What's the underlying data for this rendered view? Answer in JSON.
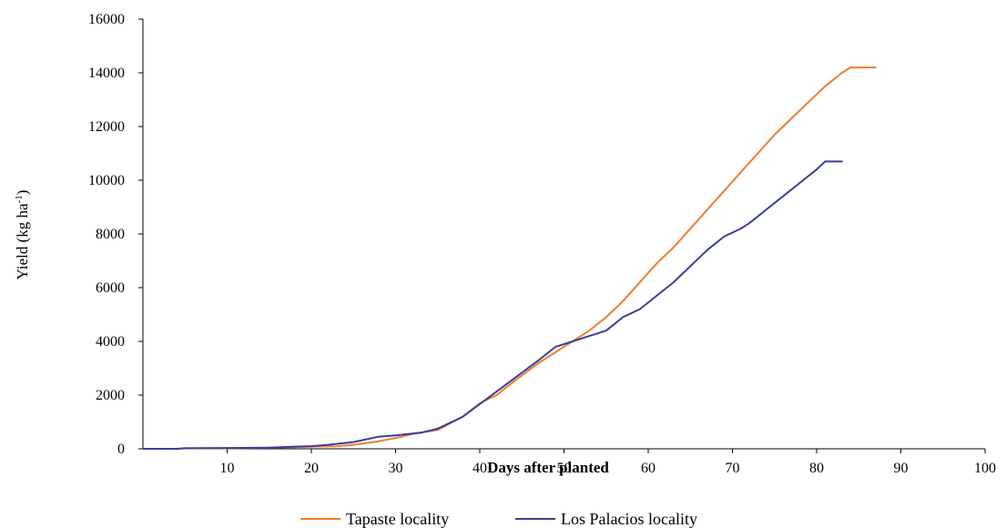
{
  "chart_data": {
    "type": "line",
    "title": "",
    "xlabel": "Days after planted",
    "ylabel": "Yield (kg ha",
    "ylabel_sup": "-1",
    "ylabel_close": ")",
    "xlim": [
      0,
      100
    ],
    "ylim": [
      0,
      16000
    ],
    "x_ticks": [
      10,
      20,
      30,
      40,
      50,
      60,
      70,
      80,
      90,
      100
    ],
    "y_ticks": [
      0,
      2000,
      4000,
      6000,
      8000,
      10000,
      12000,
      14000,
      16000
    ],
    "grid": false,
    "legend_position": "bottom",
    "series": [
      {
        "name": "Tapaste locality",
        "color": "#ED7D31",
        "points": [
          [
            0,
            0
          ],
          [
            4,
            0
          ],
          [
            5,
            20
          ],
          [
            10,
            20
          ],
          [
            15,
            40
          ],
          [
            18,
            60
          ],
          [
            20,
            80
          ],
          [
            23,
            90
          ],
          [
            25,
            150
          ],
          [
            28,
            280
          ],
          [
            30,
            400
          ],
          [
            32,
            550
          ],
          [
            35,
            700
          ],
          [
            38,
            1200
          ],
          [
            40,
            1700
          ],
          [
            42,
            2000
          ],
          [
            44,
            2500
          ],
          [
            47,
            3200
          ],
          [
            50,
            3800
          ],
          [
            53,
            4400
          ],
          [
            55,
            4900
          ],
          [
            57,
            5500
          ],
          [
            59,
            6200
          ],
          [
            61,
            6900
          ],
          [
            63,
            7500
          ],
          [
            65,
            8200
          ],
          [
            67,
            8900
          ],
          [
            69,
            9600
          ],
          [
            71,
            10300
          ],
          [
            73,
            11000
          ],
          [
            75,
            11700
          ],
          [
            77,
            12300
          ],
          [
            79,
            12900
          ],
          [
            81,
            13500
          ],
          [
            83,
            14000
          ],
          [
            84,
            14200
          ],
          [
            87,
            14200
          ]
        ]
      },
      {
        "name": "Los Palacios locality",
        "color": "#3A3F9A",
        "points": [
          [
            0,
            0
          ],
          [
            4,
            0
          ],
          [
            5,
            20
          ],
          [
            10,
            30
          ],
          [
            15,
            40
          ],
          [
            18,
            80
          ],
          [
            20,
            100
          ],
          [
            22,
            150
          ],
          [
            25,
            250
          ],
          [
            28,
            450
          ],
          [
            30,
            500
          ],
          [
            33,
            600
          ],
          [
            35,
            750
          ],
          [
            38,
            1200
          ],
          [
            41,
            1900
          ],
          [
            44,
            2600
          ],
          [
            47,
            3300
          ],
          [
            49,
            3800
          ],
          [
            51,
            4000
          ],
          [
            53,
            4200
          ],
          [
            55,
            4400
          ],
          [
            57,
            4900
          ],
          [
            59,
            5200
          ],
          [
            61,
            5700
          ],
          [
            63,
            6200
          ],
          [
            65,
            6800
          ],
          [
            67,
            7400
          ],
          [
            69,
            7900
          ],
          [
            71,
            8200
          ],
          [
            72,
            8400
          ],
          [
            74,
            8900
          ],
          [
            76,
            9400
          ],
          [
            78,
            9900
          ],
          [
            80,
            10400
          ],
          [
            81,
            10700
          ],
          [
            83,
            10700
          ]
        ]
      }
    ]
  }
}
